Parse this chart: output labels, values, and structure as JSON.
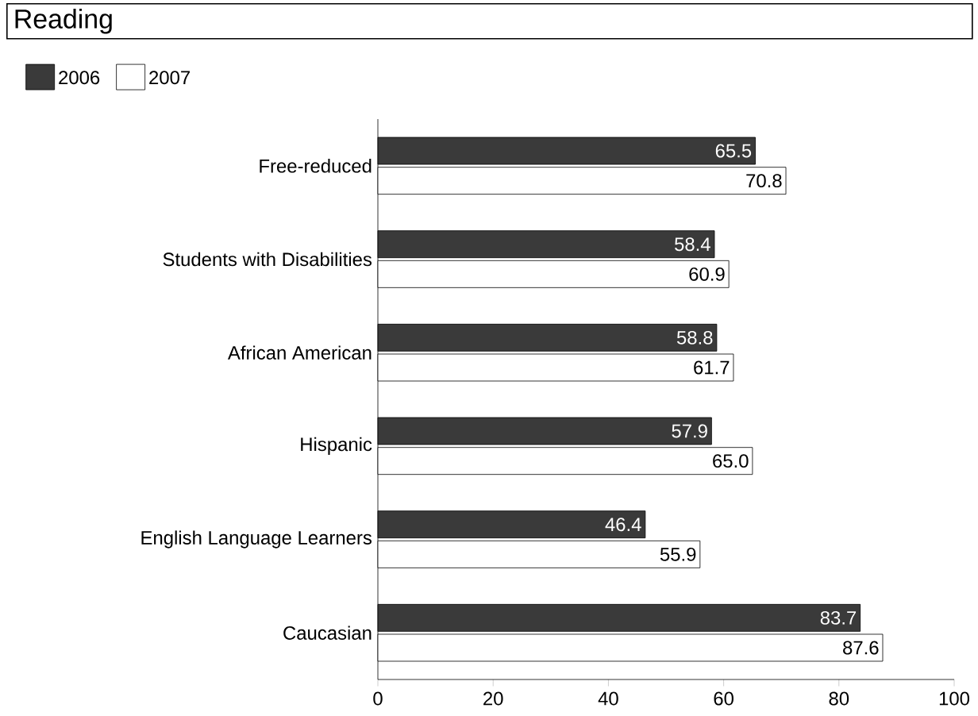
{
  "chart_data": {
    "type": "bar",
    "orientation": "horizontal",
    "title": "Reading",
    "categories": [
      "Free-reduced",
      "Students with Disabilities",
      "African American",
      "Hispanic",
      "English Language Learners",
      "Caucasian"
    ],
    "series": [
      {
        "name": "2006",
        "color": "#3a3a3a",
        "values": [
          65.5,
          58.4,
          58.8,
          57.9,
          46.4,
          83.7
        ],
        "value_labels": [
          "65.5",
          "58.4",
          "58.8",
          "57.9",
          "46.4",
          "83.7"
        ]
      },
      {
        "name": "2007",
        "color": "#ffffff",
        "values": [
          70.8,
          60.9,
          61.7,
          65.0,
          55.9,
          87.6
        ],
        "value_labels": [
          "70.8",
          "60.9",
          "61.7",
          "65.0",
          "55.9",
          "87.6"
        ]
      }
    ],
    "xlim": [
      0,
      100
    ],
    "xticks": [
      0,
      20,
      40,
      60,
      80,
      100
    ],
    "legend": "top left"
  }
}
